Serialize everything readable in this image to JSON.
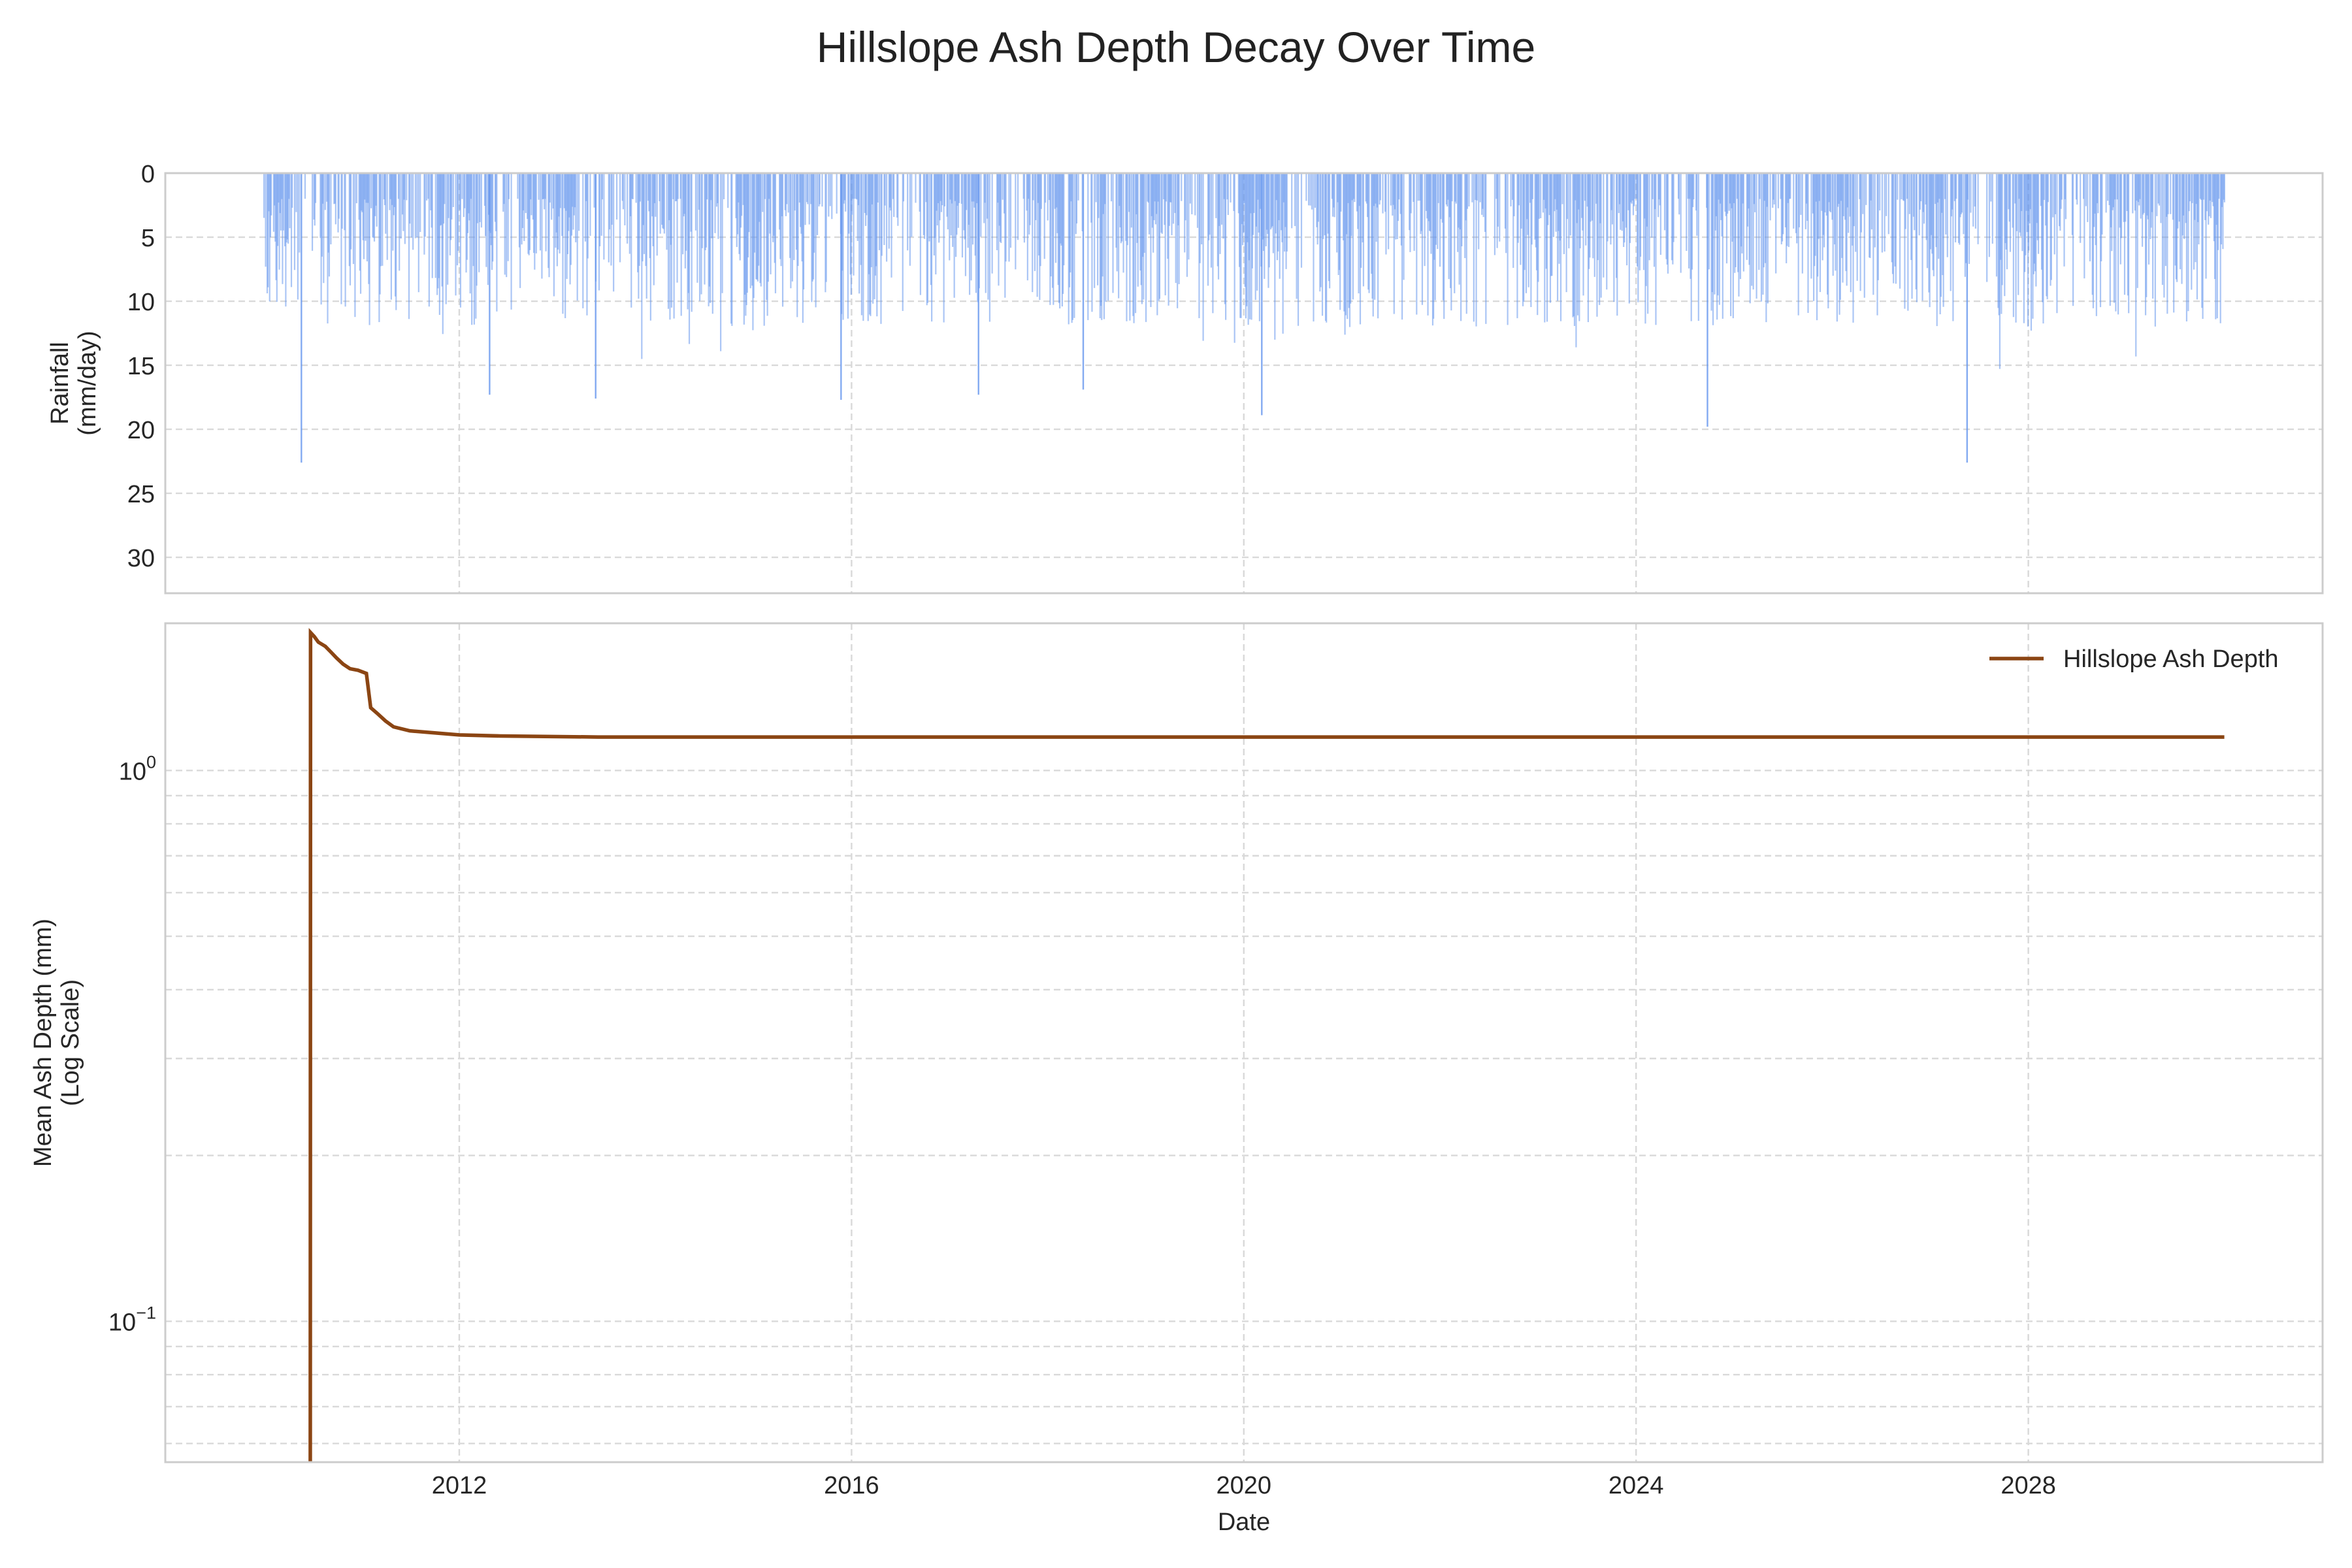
{
  "chart_data": {
    "title": "Hillslope Ash Depth Decay Over Time",
    "x_axis": {
      "label": "Date",
      "type": "date",
      "range": [
        "2009-01-01",
        "2031-01-01"
      ],
      "ticks": [
        "2012",
        "2016",
        "2020",
        "2024",
        "2028"
      ]
    },
    "grid": true,
    "panels": [
      {
        "type": "bar",
        "name": "rainfall",
        "ylabel": [
          "Rainfall",
          "(mm/day)"
        ],
        "y_inverted": true,
        "ylim": [
          0,
          32.8
        ],
        "yticks": [
          "0",
          "5",
          "10",
          "15",
          "20",
          "25",
          "30"
        ],
        "color": "#6495ED",
        "record_start": "2010-01-01",
        "record_end": "2029-12-31",
        "generation_note": "Daily rainfall record; individual values mostly 3-10 mm/day with occasional peaks.",
        "peaks": [
          {
            "date": "2010-05-20",
            "value": 22.6
          },
          {
            "date": "2012-04-20",
            "value": 17.3
          },
          {
            "date": "2013-05-20",
            "value": 17.6
          },
          {
            "date": "2015-11-20",
            "value": 17.7
          },
          {
            "date": "2017-04-15",
            "value": 17.3
          },
          {
            "date": "2018-05-10",
            "value": 16.9
          },
          {
            "date": "2020-03-05",
            "value": 18.9
          },
          {
            "date": "2024-09-20",
            "value": 19.8
          },
          {
            "date": "2027-05-15",
            "value": 22.6
          }
        ]
      },
      {
        "type": "line",
        "name": "ash-depth",
        "ylabel": [
          "Mean Ash Depth (mm)",
          "(Log Scale)"
        ],
        "scale": "log",
        "ylim": [
          0.0555,
          1.85
        ],
        "yticks": [
          {
            "value": 1,
            "base": "10",
            "exp": "0"
          },
          {
            "value": 0.1,
            "base": "10",
            "exp": "−1"
          }
        ],
        "color": "#8B4513",
        "series": [
          {
            "name": "Hillslope Ash Depth",
            "points": [
              [
                "2010-06-25",
                0.05
              ],
              [
                "2010-06-26",
                1.78
              ],
              [
                "2010-07-10",
                1.75
              ],
              [
                "2010-07-25",
                1.71
              ],
              [
                "2010-08-20",
                1.68
              ],
              [
                "2010-09-10",
                1.64
              ],
              [
                "2010-10-01",
                1.6
              ],
              [
                "2010-10-25",
                1.56
              ],
              [
                "2010-11-20",
                1.53
              ],
              [
                "2010-12-20",
                1.52
              ],
              [
                "2011-01-20",
                1.5
              ],
              [
                "2011-02-05",
                1.3
              ],
              [
                "2011-03-01",
                1.27
              ],
              [
                "2011-04-01",
                1.23
              ],
              [
                "2011-05-01",
                1.2
              ],
              [
                "2011-07-01",
                1.18
              ],
              [
                "2011-10-01",
                1.17
              ],
              [
                "2012-01-01",
                1.16
              ],
              [
                "2012-06-01",
                1.155
              ],
              [
                "2013-06-01",
                1.15
              ],
              [
                "2029-12-31",
                1.15
              ]
            ]
          }
        ],
        "legend": {
          "position": "upper right",
          "entries": [
            "Hillslope Ash Depth"
          ]
        }
      }
    ]
  }
}
